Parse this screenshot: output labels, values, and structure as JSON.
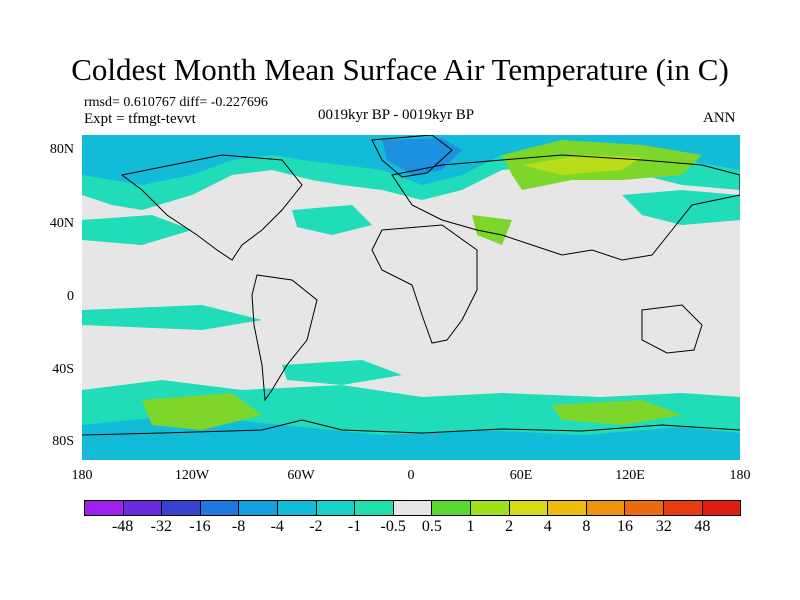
{
  "title": "Coldest Month Mean Surface Air Temperature (in C)",
  "stats": "rmsd= 0.610767  diff= -0.227696",
  "experiment": "Expt = tfmgt-tevvt",
  "period": "0019kyr BP - 0019kyr BP",
  "season": "ANN",
  "lat_labels": [
    "80N",
    "40N",
    "0",
    "40S",
    "80S"
  ],
  "lon_labels": [
    "180",
    "120W",
    "60W",
    "0",
    "60E",
    "120E",
    "180"
  ],
  "colorbar": {
    "labels": [
      "-48",
      "-32",
      "-16",
      "-8",
      "-4",
      "-2",
      "-1",
      "-0.5",
      "0.5",
      "1",
      "2",
      "4",
      "8",
      "16",
      "32",
      "48"
    ],
    "colors": [
      "#a020f0",
      "#6a2be0",
      "#3a40d0",
      "#1e78e0",
      "#16a0e0",
      "#10bcd8",
      "#18d2c8",
      "#20e0b0",
      "#e6e6e6",
      "#5ad832",
      "#9ee01c",
      "#d8dc18",
      "#ecbc10",
      "#ee9410",
      "#ec6a10",
      "#e63c10",
      "#e01e10"
    ]
  },
  "map_colors": {
    "neutral": "#e6e6e6",
    "cool": "#20dcb8",
    "cooler": "#12bcd8",
    "coolest": "#1e90e0",
    "warm": "#7ed62a",
    "warmer": "#b8dc18"
  }
}
